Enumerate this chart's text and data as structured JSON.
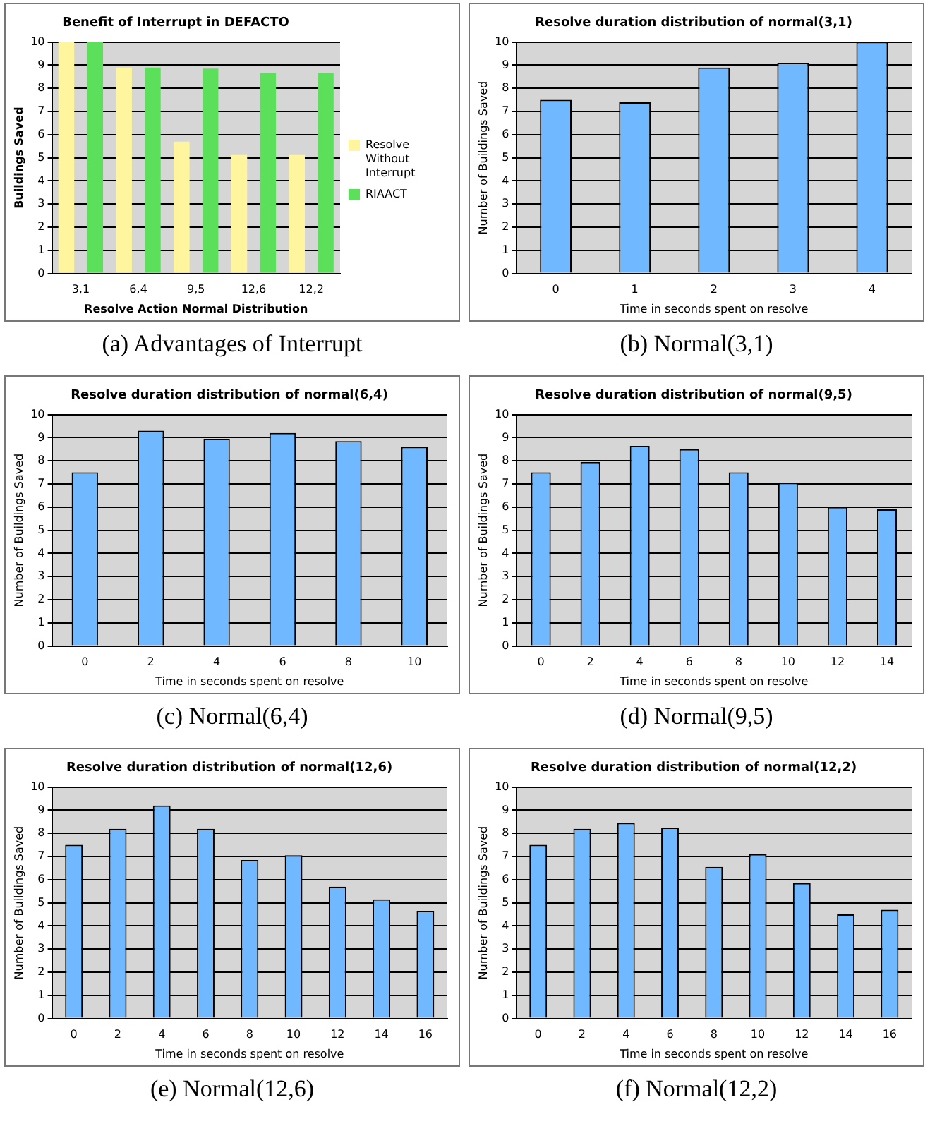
{
  "chart_data": [
    {
      "type": "bar",
      "title": "Benefit of Interrupt in DEFACTO",
      "xlabel": "Resolve Action Normal Distribution",
      "ylabel": "Buildings Saved",
      "categories": [
        "3,1",
        "6,4",
        "9,5",
        "12,6",
        "12,2"
      ],
      "series": [
        {
          "name": "Resolve Without Interrupt",
          "color": "#fff59f",
          "values": [
            10,
            8.9,
            5.7,
            5.15,
            5.15
          ]
        },
        {
          "name": "RIAACT",
          "color": "#5ce05c",
          "values": [
            10,
            8.9,
            8.85,
            8.65,
            8.65
          ]
        }
      ],
      "ylim": [
        0,
        10
      ],
      "yticks": [
        0,
        1,
        2,
        3,
        4,
        5,
        6,
        7,
        8,
        9,
        10
      ],
      "grid": "y",
      "legend": "right",
      "annotations": [
        "(a) Advantages of Interrupt"
      ]
    },
    {
      "type": "bar",
      "title": "Resolve duration distribution of normal(3,1)",
      "xlabel": "Time in seconds spent on resolve",
      "ylabel": "Number of Buildings Saved",
      "categories": [
        "0",
        "1",
        "2",
        "3",
        "4"
      ],
      "color": "#70b8ff",
      "values": [
        7.5,
        7.4,
        8.9,
        9.1,
        10
      ],
      "ylim": [
        0,
        10
      ],
      "yticks": [
        0,
        1,
        2,
        3,
        4,
        5,
        6,
        7,
        8,
        9,
        10
      ],
      "grid": "y",
      "annotations": [
        "(b) Normal(3,1)"
      ]
    },
    {
      "type": "bar",
      "title": "Resolve duration distribution of normal(6,4)",
      "xlabel": "Time in seconds spent on resolve",
      "ylabel": "Number of Buildings Saved",
      "categories": [
        "0",
        "2",
        "4",
        "6",
        "8",
        "10"
      ],
      "color": "#70b8ff",
      "values": [
        7.5,
        9.3,
        8.95,
        9.2,
        8.85,
        8.6
      ],
      "ylim": [
        0,
        10
      ],
      "yticks": [
        0,
        1,
        2,
        3,
        4,
        5,
        6,
        7,
        8,
        9,
        10
      ],
      "grid": "y",
      "annotations": [
        "(c) Normal(6,4)"
      ]
    },
    {
      "type": "bar",
      "title": "Resolve duration distribution of normal(9,5)",
      "xlabel": "Time in seconds spent on resolve",
      "ylabel": "Number of Buildings Saved",
      "categories": [
        "0",
        "2",
        "4",
        "6",
        "8",
        "10",
        "12",
        "14"
      ],
      "color": "#70b8ff",
      "values": [
        7.5,
        7.95,
        8.65,
        8.5,
        7.5,
        7.05,
        6.0,
        5.9
      ],
      "ylim": [
        0,
        10
      ],
      "yticks": [
        0,
        1,
        2,
        3,
        4,
        5,
        6,
        7,
        8,
        9,
        10
      ],
      "grid": "y",
      "annotations": [
        "(d) Normal(9,5)"
      ]
    },
    {
      "type": "bar",
      "title": "Resolve duration distribution of normal(12,6)",
      "xlabel": "Time in seconds spent on resolve",
      "ylabel": "Number of Buildings Saved",
      "categories": [
        "0",
        "2",
        "4",
        "6",
        "8",
        "10",
        "12",
        "14",
        "16"
      ],
      "color": "#70b8ff",
      "values": [
        7.5,
        8.2,
        9.2,
        8.2,
        6.85,
        7.05,
        5.7,
        5.15,
        4.65
      ],
      "ylim": [
        0,
        10
      ],
      "yticks": [
        0,
        1,
        2,
        3,
        4,
        5,
        6,
        7,
        8,
        9,
        10
      ],
      "grid": "y",
      "annotations": [
        "(e) Normal(12,6)"
      ]
    },
    {
      "type": "bar",
      "title": "Resolve duration distribution of normal(12,2)",
      "xlabel": "Time in seconds spent on resolve",
      "ylabel": "Number of Buildings Saved",
      "categories": [
        "0",
        "2",
        "4",
        "6",
        "8",
        "10",
        "12",
        "14",
        "16"
      ],
      "color": "#70b8ff",
      "values": [
        7.5,
        8.2,
        8.45,
        8.25,
        6.55,
        7.1,
        5.85,
        4.5,
        4.7
      ],
      "ylim": [
        0,
        10
      ],
      "yticks": [
        0,
        1,
        2,
        3,
        4,
        5,
        6,
        7,
        8,
        9,
        10
      ],
      "grid": "y",
      "annotations": [
        "(f) Normal(12,2)"
      ]
    }
  ]
}
